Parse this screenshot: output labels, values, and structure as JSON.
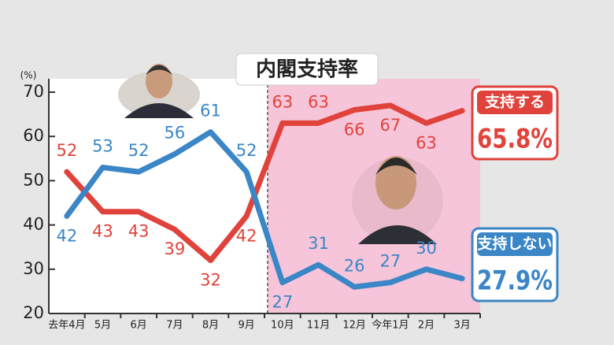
{
  "chart_data": {
    "type": "line",
    "title": "内閣支持率",
    "ylabel": "(%)",
    "categories": [
      "去年4月",
      "5月",
      "6月",
      "7月",
      "8月",
      "9月",
      "10月",
      "11月",
      "12月",
      "今年1月",
      "2月",
      "3月"
    ],
    "series": [
      {
        "name": "支持する",
        "color": "#e0433b",
        "values": [
          52,
          43,
          43,
          39,
          32,
          42,
          63,
          63,
          66,
          67,
          63,
          65.8
        ],
        "value_labels": [
          "52",
          "43",
          "43",
          "39",
          "32",
          "42",
          "63",
          "63",
          "66",
          "67",
          "63",
          "65.8%"
        ]
      },
      {
        "name": "支持しない",
        "color": "#3a86c6",
        "values": [
          42,
          53,
          52,
          56,
          61,
          52,
          27,
          31,
          26,
          27,
          30,
          27.9
        ],
        "value_labels": [
          "42",
          "53",
          "52",
          "56",
          "61",
          "52",
          "27",
          "31",
          "26",
          "27",
          "30",
          "27.9%"
        ]
      }
    ],
    "ylim": [
      20,
      70
    ],
    "yticks": [
      20,
      30,
      40,
      50,
      60,
      70
    ]
  }
}
